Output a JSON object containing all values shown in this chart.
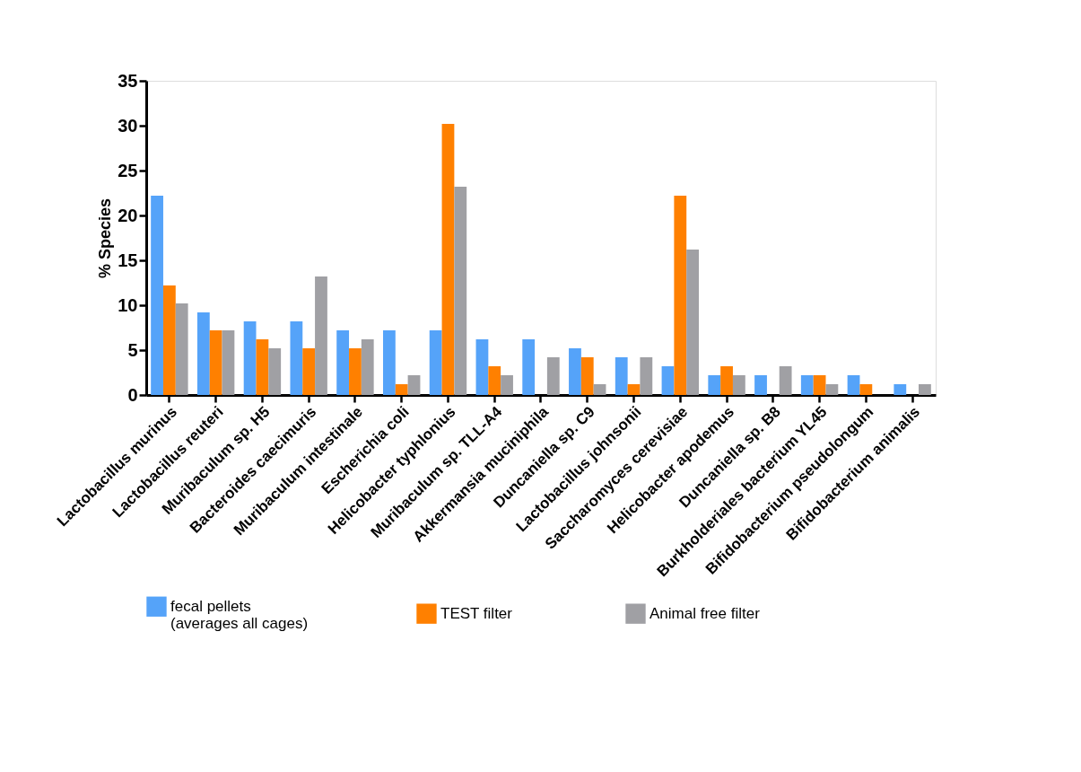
{
  "chart_data": {
    "type": "bar",
    "ylabel": "% Species",
    "categories": [
      "Lactobacillus murinus",
      "Lactobacillus reuteri",
      "Muribaculum sp. H5",
      "Bacteroides caecimuris",
      "Muribaculum intestinale",
      "Escherichia coli",
      "Helicobacter typhlonius",
      "Muribaculum sp. TLL-A4",
      "Akkermansia muciniphila",
      "Duncaniella sp. C9",
      "Lactobacillus johnsonii",
      "Saccharomyces cerevisiae",
      "Helicobacter apodemus",
      "Duncaniella sp. B8",
      "Burkholderiales bacterium YL45",
      "Bifidobacterium pseudolongum",
      "Bifidobacterium animalis"
    ],
    "series": [
      {
        "name": "fecal pellets\n(averages all cages)",
        "color": "#55a3f9",
        "values": [
          22.2,
          9.2,
          8.2,
          8.2,
          7.2,
          7.2,
          7.2,
          6.2,
          6.2,
          5.2,
          4.2,
          3.2,
          2.2,
          2.2,
          2.2,
          2.2,
          1.2
        ]
      },
      {
        "name": "TEST  filter",
        "color": "#ff8000",
        "values": [
          12.2,
          7.2,
          6.2,
          5.2,
          5.2,
          1.2,
          30.2,
          3.2,
          null,
          4.2,
          1.2,
          22.2,
          3.2,
          null,
          2.2,
          1.2,
          null
        ]
      },
      {
        "name": "Animal free filter",
        "color": "#a0a0a4",
        "values": [
          10.2,
          7.2,
          5.2,
          13.2,
          6.2,
          2.2,
          23.2,
          2.2,
          4.2,
          1.2,
          4.2,
          16.2,
          2.2,
          3.2,
          1.2,
          null,
          1.2
        ]
      }
    ],
    "ylim": [
      0,
      35
    ],
    "yticks": [
      0,
      5,
      10,
      15,
      20,
      25,
      30,
      35
    ],
    "grid": false,
    "legend": "bottom"
  }
}
